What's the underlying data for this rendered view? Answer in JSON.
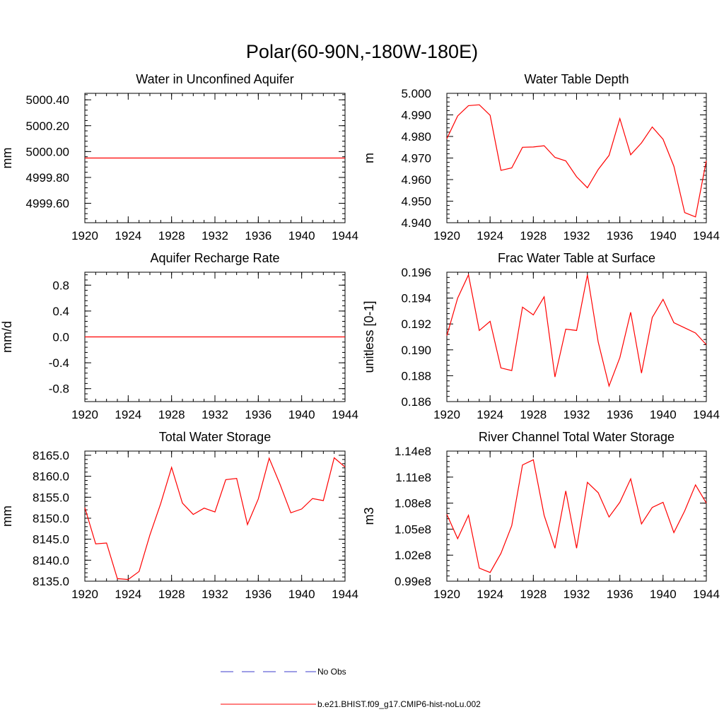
{
  "suptitle": "Polar(60-90N,-180W-180E)",
  "line_color": "#ff0000",
  "obs_color": "#3b3bcc",
  "legend": {
    "obs_label": "No Obs",
    "model_label": "b.e21.BHIST.f09_g17.CMIP6-hist-noLu.002"
  },
  "chart_data": [
    {
      "type": "line",
      "title": "Water in Unconfined Aquifer",
      "ylabel": "mm",
      "x": [
        1920,
        1921,
        1922,
        1923,
        1924,
        1925,
        1926,
        1927,
        1928,
        1929,
        1930,
        1931,
        1932,
        1933,
        1934,
        1935,
        1936,
        1937,
        1938,
        1939,
        1940,
        1941,
        1942,
        1943,
        1944
      ],
      "values": [
        4999.95,
        4999.95,
        4999.95,
        4999.95,
        4999.95,
        4999.95,
        4999.95,
        4999.95,
        4999.95,
        4999.95,
        4999.95,
        4999.95,
        4999.95,
        4999.95,
        4999.95,
        4999.95,
        4999.95,
        4999.95,
        4999.95,
        4999.95,
        4999.95,
        4999.95,
        4999.95,
        4999.95,
        4999.95
      ],
      "xlim": [
        1920,
        1944
      ],
      "ylim": [
        4999.45,
        5000.45
      ],
      "yticks": [
        4999.6,
        4999.8,
        5000.0,
        5000.2,
        5000.4
      ],
      "yticklabels": [
        "4999.60",
        "4999.80",
        "5000.00",
        "5000.20",
        "5000.40"
      ],
      "xticks": [
        1920,
        1924,
        1928,
        1932,
        1936,
        1940,
        1944
      ],
      "xticklabels": [
        "1920",
        "1924",
        "1928",
        "1932",
        "1936",
        "1940",
        "1944"
      ]
    },
    {
      "type": "line",
      "title": "Water Table Depth",
      "ylabel": "m",
      "x": [
        1920,
        1921,
        1922,
        1923,
        1924,
        1925,
        1926,
        1927,
        1928,
        1929,
        1930,
        1931,
        1932,
        1933,
        1934,
        1935,
        1936,
        1937,
        1938,
        1939,
        1940,
        1941,
        1942,
        1943,
        1944
      ],
      "values": [
        4.979,
        4.9895,
        4.9943,
        4.9947,
        4.9898,
        4.9643,
        4.9654,
        4.975,
        4.9751,
        4.9757,
        4.9703,
        4.9687,
        4.9613,
        4.9562,
        4.9647,
        4.9712,
        4.9883,
        4.9715,
        4.977,
        4.9844,
        4.9787,
        4.9662,
        4.9447,
        4.9427,
        4.9688
      ],
      "xlim": [
        1920,
        1944
      ],
      "ylim": [
        4.94,
        5.0
      ],
      "yticks": [
        4.94,
        4.95,
        4.96,
        4.97,
        4.98,
        4.99,
        5.0
      ],
      "yticklabels": [
        "4.940",
        "4.950",
        "4.960",
        "4.970",
        "4.980",
        "4.990",
        "5.000"
      ],
      "xticks": [
        1920,
        1924,
        1928,
        1932,
        1936,
        1940,
        1944
      ],
      "xticklabels": [
        "1920",
        "1924",
        "1928",
        "1932",
        "1936",
        "1940",
        "1944"
      ]
    },
    {
      "type": "line",
      "title": "Aquifer Recharge Rate",
      "ylabel": "mm/d",
      "x": [
        1920,
        1921,
        1922,
        1923,
        1924,
        1925,
        1926,
        1927,
        1928,
        1929,
        1930,
        1931,
        1932,
        1933,
        1934,
        1935,
        1936,
        1937,
        1938,
        1939,
        1940,
        1941,
        1942,
        1943,
        1944
      ],
      "values": [
        0,
        0,
        0,
        0,
        0,
        0,
        0,
        0,
        0,
        0,
        0,
        0,
        0,
        0,
        0,
        0,
        0,
        0,
        0,
        0,
        0,
        0,
        0,
        0,
        0
      ],
      "xlim": [
        1920,
        1944
      ],
      "ylim": [
        -1.0,
        1.0
      ],
      "yticks": [
        -0.8,
        -0.4,
        0.0,
        0.4,
        0.8
      ],
      "yticklabels": [
        "-0.8",
        "-0.4",
        "0.0",
        "0.4",
        "0.8"
      ],
      "xticks": [
        1920,
        1924,
        1928,
        1932,
        1936,
        1940,
        1944
      ],
      "xticklabels": [
        "1920",
        "1924",
        "1928",
        "1932",
        "1936",
        "1940",
        "1944"
      ]
    },
    {
      "type": "line",
      "title": "Frac Water Table at Surface",
      "ylabel": "unitless [0-1]",
      "x": [
        1920,
        1921,
        1922,
        1923,
        1924,
        1925,
        1926,
        1927,
        1928,
        1929,
        1930,
        1931,
        1932,
        1933,
        1934,
        1935,
        1936,
        1937,
        1938,
        1939,
        1940,
        1941,
        1942,
        1943,
        1944
      ],
      "values": [
        0.1911,
        0.194,
        0.1958,
        0.1915,
        0.1922,
        0.1886,
        0.1884,
        0.1933,
        0.1927,
        0.1941,
        0.1879,
        0.1916,
        0.1915,
        0.1958,
        0.1906,
        0.1872,
        0.1894,
        0.1929,
        0.1882,
        0.1925,
        0.1939,
        0.1921,
        0.1917,
        0.1913,
        0.1904
      ],
      "xlim": [
        1920,
        1944
      ],
      "ylim": [
        0.186,
        0.196
      ],
      "yticks": [
        0.186,
        0.188,
        0.19,
        0.192,
        0.194,
        0.196
      ],
      "yticklabels": [
        "0.186",
        "0.188",
        "0.190",
        "0.192",
        "0.194",
        "0.196"
      ],
      "xticks": [
        1920,
        1924,
        1928,
        1932,
        1936,
        1940,
        1944
      ],
      "xticklabels": [
        "1920",
        "1924",
        "1928",
        "1932",
        "1936",
        "1940",
        "1944"
      ]
    },
    {
      "type": "line",
      "title": "Total Water Storage",
      "ylabel": "mm",
      "x": [
        1920,
        1921,
        1922,
        1923,
        1924,
        1925,
        1926,
        1927,
        1928,
        1929,
        1930,
        1931,
        1932,
        1933,
        1934,
        1935,
        1936,
        1937,
        1938,
        1939,
        1940,
        1941,
        1942,
        1943,
        1944
      ],
      "values": [
        8152.5,
        8143.9,
        8144.1,
        8135.6,
        8135.4,
        8137.3,
        8146.0,
        8153.5,
        8162.1,
        8153.6,
        8150.9,
        8152.4,
        8151.5,
        8159.2,
        8159.5,
        8148.5,
        8154.6,
        8164.3,
        8158.1,
        8151.3,
        8152.2,
        8154.7,
        8154.2,
        8164.4,
        8162.2
      ],
      "xlim": [
        1920,
        1944
      ],
      "ylim": [
        8135.0,
        8166.0
      ],
      "yticks": [
        8135.0,
        8140.0,
        8145.0,
        8150.0,
        8155.0,
        8160.0,
        8165.0
      ],
      "yticklabels": [
        "8135.0",
        "8140.0",
        "8145.0",
        "8150.0",
        "8155.0",
        "8160.0",
        "8165.0"
      ],
      "xticks": [
        1920,
        1924,
        1928,
        1932,
        1936,
        1940,
        1944
      ],
      "xticklabels": [
        "1920",
        "1924",
        "1928",
        "1932",
        "1936",
        "1940",
        "1944"
      ]
    },
    {
      "type": "line",
      "title": "River Channel Total Water Storage",
      "ylabel": "m3",
      "x": [
        1920,
        1921,
        1922,
        1923,
        1924,
        1925,
        1926,
        1927,
        1928,
        1929,
        1930,
        1931,
        1932,
        1933,
        1934,
        1935,
        1936,
        1937,
        1938,
        1939,
        1940,
        1941,
        1942,
        1943,
        1944
      ],
      "values": [
        106700000,
        103900000,
        106600000,
        100500000,
        100000000,
        102200000,
        105400000,
        112400000,
        113000000,
        106600000,
        102800000,
        109400000,
        102800000,
        110400000,
        109200000,
        106400000,
        108100000,
        110800000,
        105600000,
        107500000,
        108100000,
        104600000,
        107100000,
        110100000,
        108000000
      ],
      "xlim": [
        1920,
        1944
      ],
      "ylim": [
        99000000,
        114000000
      ],
      "yticks": [
        99000000,
        102000000,
        105000000,
        108000000,
        111000000,
        114000000
      ],
      "yticklabels": [
        "0.99e8",
        "1.02e8",
        "1.05e8",
        "1.08e8",
        "1.11e8",
        "1.14e8"
      ],
      "xticks": [
        1920,
        1924,
        1928,
        1932,
        1936,
        1940,
        1944
      ],
      "xticklabels": [
        "1920",
        "1924",
        "1928",
        "1932",
        "1936",
        "1940",
        "1944"
      ]
    }
  ]
}
